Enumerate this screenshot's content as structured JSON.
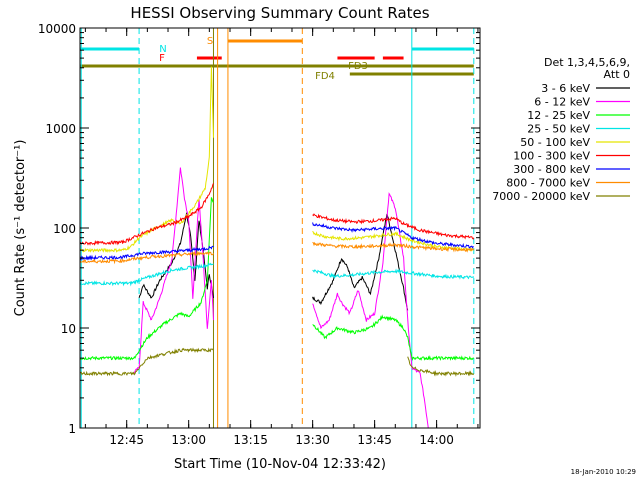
{
  "chart_data": {
    "type": "line",
    "title": "HESSI Observing Summary Count Rates",
    "xlabel": "Start Time (10-Nov-04 12:33:42)",
    "ylabel": "Count Rate (s⁻¹ detector⁻¹)",
    "yscale": "log",
    "ylim": [
      1,
      10000
    ],
    "xlim": [
      "12:33:42",
      "14:10:30"
    ],
    "x_ticks": [
      "12:45",
      "13:00",
      "13:15",
      "13:30",
      "13:45",
      "14:00"
    ],
    "y_ticks": [
      "1",
      "10",
      "100",
      "1000",
      "10000"
    ],
    "legend_title": "Det 1,3,4,5,6,9,",
    "legend_subtitle": "Att 0",
    "legend_position": "right",
    "timestamp": "18-Jan-2010 10:29",
    "flags": [
      {
        "label": "N",
        "color": "#00e5e5",
        "segments": [
          [
            "12:33:42",
            "12:48:00"
          ],
          [
            "13:54:00",
            "14:09:00"
          ]
        ]
      },
      {
        "label": "S",
        "color": "#ff8c00",
        "segments": [
          [
            "13:09:30",
            "13:27:30"
          ]
        ]
      },
      {
        "label": "F",
        "color": "#ff0000",
        "segments": [
          [
            "13:02:00",
            "13:08:00"
          ],
          [
            "13:36:00",
            "13:45:00"
          ],
          [
            "13:47:00",
            "13:52:00"
          ]
        ]
      },
      {
        "label": "FD3",
        "color": "#808000",
        "segments": [
          [
            "12:33:42",
            "14:09:00"
          ]
        ]
      },
      {
        "label": "FD4",
        "color": "#808000",
        "segments": [
          [
            "13:39:00",
            "14:09:00"
          ]
        ]
      }
    ],
    "vertical_markers": [
      {
        "time": "12:34:00",
        "color": "#00e5e5",
        "style": "solid"
      },
      {
        "time": "12:48:00",
        "color": "#00e5e5",
        "style": "dashed"
      },
      {
        "time": "13:06:00",
        "color": "#808000",
        "style": "solid"
      },
      {
        "time": "13:07:00",
        "color": "#ff8c00",
        "style": "solid"
      },
      {
        "time": "13:09:30",
        "color": "#ff8c00",
        "style": "solid"
      },
      {
        "time": "13:27:30",
        "color": "#ff8c00",
        "style": "dashed"
      },
      {
        "time": "13:54:00",
        "color": "#00e5e5",
        "style": "solid"
      },
      {
        "time": "14:09:00",
        "color": "#00e5e5",
        "style": "dashed"
      }
    ],
    "series": [
      {
        "name": "3 - 6 keV",
        "color": "#000000",
        "segments": [
          [
            [
              "12:48:00",
              20
            ],
            [
              "12:49:00",
              27
            ],
            [
              "12:51:00",
              20
            ],
            [
              "12:53:00",
              30
            ],
            [
              "12:56:00",
              45
            ],
            [
              "12:58:00",
              70
            ],
            [
              "12:59:30",
              140
            ],
            [
              "13:00:30",
              80
            ],
            [
              "13:01:30",
              30
            ],
            [
              "13:02:30",
              120
            ],
            [
              "13:03:30",
              60
            ],
            [
              "13:04:30",
              25
            ],
            [
              "13:05:00",
              35
            ],
            [
              "13:06:00",
              20
            ]
          ],
          [
            [
              "13:30:00",
              20
            ],
            [
              "13:32:00",
              18
            ],
            [
              "13:35:00",
              30
            ],
            [
              "13:37:00",
              50
            ],
            [
              "13:38:30",
              40
            ],
            [
              "13:40:00",
              25
            ],
            [
              "13:42:00",
              32
            ],
            [
              "13:44:00",
              22
            ],
            [
              "13:46:00",
              50
            ],
            [
              "13:48:00",
              140
            ],
            [
              "13:50:00",
              60
            ],
            [
              "13:52:00",
              25
            ],
            [
              "13:53:00",
              15
            ]
          ]
        ]
      },
      {
        "name": "6 - 12 keV",
        "color": "#ff00ff",
        "segments": [
          [
            [
              "12:46:30",
              3.5
            ],
            [
              "12:48:00",
              4
            ],
            [
              "12:49:00",
              18
            ],
            [
              "12:51:00",
              12
            ],
            [
              "12:53:00",
              20
            ],
            [
              "12:56:00",
              50
            ],
            [
              "12:58:00",
              400
            ],
            [
              "12:59:00",
              200
            ],
            [
              "13:00:00",
              120
            ],
            [
              "13:01:00",
              20
            ],
            [
              "13:02:30",
              200
            ],
            [
              "13:03:30",
              50
            ],
            [
              "13:04:30",
              10
            ],
            [
              "13:05:30",
              30
            ],
            [
              "13:06:00",
              12
            ]
          ],
          [
            [
              "13:30:00",
              18
            ],
            [
              "13:32:00",
              10
            ],
            [
              "13:34:00",
              12
            ],
            [
              "13:36:00",
              22
            ],
            [
              "13:37:00",
              18
            ],
            [
              "13:39:00",
              14
            ],
            [
              "13:41:00",
              24
            ],
            [
              "13:43:00",
              12
            ],
            [
              "13:45:00",
              14
            ],
            [
              "13:47:00",
              45
            ],
            [
              "13:48:30",
              220
            ],
            [
              "13:50:00",
              160
            ],
            [
              "13:52:00",
              50
            ],
            [
              "13:53:00",
              12
            ],
            [
              "13:54:00",
              4
            ],
            [
              "13:56:00",
              3.5
            ],
            [
              "13:57:00",
              2
            ],
            [
              "13:58:00",
              1
            ]
          ]
        ]
      },
      {
        "name": "12 - 25 keV",
        "color": "#00ff00",
        "segments": [
          [
            [
              "12:33:42",
              5
            ],
            [
              "12:47:00",
              5
            ],
            [
              "12:48:00",
              6
            ],
            [
              "12:50:00",
              8
            ],
            [
              "12:54:00",
              11
            ],
            [
              "12:58:00",
              14
            ],
            [
              "13:00:00",
              13
            ],
            [
              "13:03:00",
              18
            ],
            [
              "13:04:30",
              30
            ],
            [
              "13:05:30",
              200
            ],
            [
              "13:06:00",
              180
            ]
          ],
          [
            [
              "13:30:00",
              11
            ],
            [
              "13:33:00",
              8
            ],
            [
              "13:36:00",
              10
            ],
            [
              "13:40:00",
              9
            ],
            [
              "13:44:00",
              10
            ],
            [
              "13:47:00",
              13
            ],
            [
              "13:50:00",
              12
            ],
            [
              "13:52:00",
              10
            ],
            [
              "13:53:00",
              8
            ],
            [
              "13:54:00",
              5
            ],
            [
              "14:09:00",
              5
            ]
          ]
        ]
      },
      {
        "name": "25 - 50 keV",
        "color": "#00e5e5",
        "segments": [
          [
            [
              "12:33:42",
              28
            ],
            [
              "12:46:00",
              28
            ],
            [
              "12:48:00",
              30
            ],
            [
              "12:52:00",
              34
            ],
            [
              "12:56:00",
              38
            ],
            [
              "13:00:00",
              40
            ],
            [
              "13:04:00",
              42
            ],
            [
              "13:06:00",
              44
            ]
          ],
          [
            [
              "13:30:00",
              38
            ],
            [
              "13:35:00",
              33
            ],
            [
              "13:40:00",
              34
            ],
            [
              "13:45:00",
              36
            ],
            [
              "13:50:00",
              37
            ],
            [
              "13:55:00",
              35
            ],
            [
              "14:00:00",
              33
            ],
            [
              "14:09:00",
              32
            ]
          ]
        ]
      },
      {
        "name": "50 - 100 keV",
        "color": "#e5e500",
        "segments": [
          [
            [
              "12:33:42",
              60
            ],
            [
              "12:44:00",
              60
            ],
            [
              "12:46:00",
              65
            ],
            [
              "12:48:00",
              80
            ],
            [
              "12:52:00",
              100
            ],
            [
              "12:56:00",
              120
            ],
            [
              "12:58:00",
              110
            ],
            [
              "13:00:00",
              140
            ],
            [
              "13:02:00",
              180
            ],
            [
              "13:04:00",
              250
            ],
            [
              "13:05:00",
              500
            ],
            [
              "13:05:30",
              4000
            ],
            [
              "13:06:00",
              800
            ]
          ],
          [
            [
              "13:30:00",
              90
            ],
            [
              "13:33:00",
              82
            ],
            [
              "13:37:00",
              78
            ],
            [
              "13:42:00",
              80
            ],
            [
              "13:47:00",
              85
            ],
            [
              "13:50:00",
              88
            ],
            [
              "13:54:00",
              75
            ],
            [
              "14:00:00",
              65
            ],
            [
              "14:09:00",
              60
            ]
          ]
        ]
      },
      {
        "name": "100 - 300 keV",
        "color": "#ff0000",
        "segments": [
          [
            [
              "12:33:42",
              70
            ],
            [
              "12:44:00",
              72
            ],
            [
              "12:48:00",
              85
            ],
            [
              "12:52:00",
              100
            ],
            [
              "12:56:00",
              110
            ],
            [
              "13:00:00",
              130
            ],
            [
              "13:03:00",
              160
            ],
            [
              "13:05:00",
              220
            ],
            [
              "13:06:00",
              280
            ]
          ],
          [
            [
              "13:30:00",
              135
            ],
            [
              "13:35:00",
              120
            ],
            [
              "13:40:00",
              115
            ],
            [
              "13:45:00",
              118
            ],
            [
              "13:50:00",
              125
            ],
            [
              "13:52:00",
              110
            ],
            [
              "13:56:00",
              95
            ],
            [
              "14:02:00",
              85
            ],
            [
              "14:09:00",
              80
            ]
          ]
        ]
      },
      {
        "name": "300 - 800 keV",
        "color": "#0000ff",
        "segments": [
          [
            [
              "12:33:42",
              50
            ],
            [
              "12:44:00",
              51
            ],
            [
              "12:48:00",
              55
            ],
            [
              "12:52:00",
              57
            ],
            [
              "12:56:00",
              58
            ],
            [
              "13:00:00",
              60
            ],
            [
              "13:04:00",
              62
            ],
            [
              "13:06:00",
              65
            ]
          ],
          [
            [
              "13:30:00",
              110
            ],
            [
              "13:35:00",
              100
            ],
            [
              "13:40:00",
              95
            ],
            [
              "13:45:00",
              98
            ],
            [
              "13:50:00",
              100
            ],
            [
              "13:54:00",
              80
            ],
            [
              "14:00:00",
              70
            ],
            [
              "14:09:00",
              65
            ]
          ]
        ]
      },
      {
        "name": "800 - 7000 keV",
        "color": "#ff8c00",
        "segments": [
          [
            [
              "12:33:42",
              46
            ],
            [
              "12:44:00",
              47
            ],
            [
              "12:48:00",
              50
            ],
            [
              "12:52:00",
              52
            ],
            [
              "12:56:00",
              53
            ],
            [
              "13:00:00",
              55
            ],
            [
              "13:04:00",
              56
            ],
            [
              "13:06:00",
              56
            ]
          ],
          [
            [
              "13:30:00",
              70
            ],
            [
              "13:35:00",
              66
            ],
            [
              "13:40:00",
              65
            ],
            [
              "13:45:00",
              66
            ],
            [
              "13:50:00",
              68
            ],
            [
              "13:54:00",
              65
            ],
            [
              "14:00:00",
              62
            ],
            [
              "14:09:00",
              60
            ]
          ]
        ]
      },
      {
        "name": "7000 - 20000 keV",
        "color": "#808000",
        "segments": [
          [
            [
              "12:33:42",
              3.5
            ],
            [
              "12:47:00",
              3.5
            ],
            [
              "12:48:00",
              4
            ],
            [
              "12:50:00",
              5
            ],
            [
              "12:54:00",
              5.5
            ],
            [
              "12:58:00",
              6
            ],
            [
              "13:06:00",
              6
            ]
          ],
          [
            [
              "13:53:00",
              5
            ],
            [
              "13:54:00",
              4
            ],
            [
              "13:56:00",
              3.8
            ],
            [
              "14:00:00",
              3.5
            ],
            [
              "14:09:00",
              3.5
            ]
          ]
        ]
      }
    ]
  }
}
